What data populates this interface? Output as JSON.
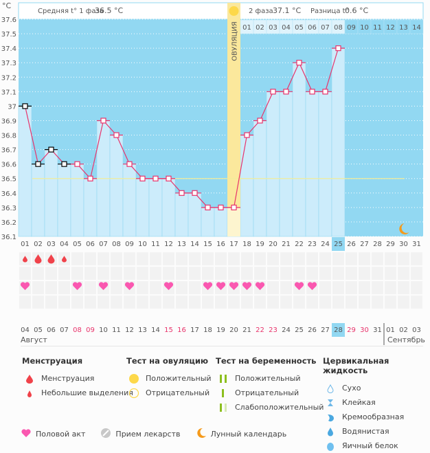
{
  "chart_data": {
    "type": "line",
    "title": "",
    "ylabel": "°C",
    "ylim": [
      36.1,
      37.6
    ],
    "yticks": [
      "37.6",
      "37.5",
      "37.4",
      "37.3",
      "37.2",
      "37.1",
      "37",
      "36.9",
      "36.8",
      "36.7",
      "36.6",
      "36.5",
      "36.4",
      "36.3",
      "36.2",
      "36.1"
    ],
    "cycle_days": [
      "01",
      "02",
      "03",
      "04",
      "05",
      "06",
      "07",
      "08",
      "09",
      "10",
      "11",
      "12",
      "13",
      "14",
      "15",
      "16",
      "17",
      "18",
      "19",
      "20",
      "21",
      "22",
      "23",
      "24",
      "25",
      "26",
      "27",
      "28",
      "29",
      "30",
      "31"
    ],
    "phase2_days": [
      "01",
      "02",
      "03",
      "04",
      "05",
      "06",
      "07",
      "08",
      "09",
      "10",
      "11",
      "12",
      "13",
      "14"
    ],
    "temperatures": [
      37.0,
      36.6,
      36.7,
      36.6,
      36.6,
      36.5,
      36.9,
      36.8,
      36.6,
      36.5,
      36.5,
      36.5,
      36.4,
      36.4,
      36.3,
      36.3,
      36.3,
      36.8,
      36.9,
      37.1,
      37.1,
      37.3,
      37.1,
      37.1,
      37.4,
      null,
      null,
      null,
      null,
      null,
      null
    ],
    "excluded_points": [
      1,
      2,
      3,
      4
    ],
    "coverline": 36.5,
    "ovulation_day": 17,
    "current_day": 25,
    "moon_day": 30,
    "ovulation_label": "ОВУЛЯЦИЯ",
    "summary": {
      "phase1_label": "Средняя t° 1 фаза",
      "phase1_value": "36.5 °C",
      "phase2_label": "2 фаза",
      "phase2_value": "37.1 °C",
      "diff_label": "Разница t°",
      "diff_value": "0.6 °C"
    },
    "menstruation": {
      "1": "small",
      "2": "large",
      "3": "large",
      "4": "small"
    },
    "intercourse_days": [
      1,
      5,
      7,
      9,
      12,
      15,
      16,
      17,
      18,
      19,
      22,
      23
    ],
    "calendar_dates": [
      "04",
      "05",
      "06",
      "07",
      "08",
      "09",
      "10",
      "11",
      "12",
      "13",
      "14",
      "15",
      "16",
      "17",
      "18",
      "19",
      "20",
      "21",
      "22",
      "23",
      "24",
      "25",
      "26",
      "27",
      "28",
      "29",
      "30",
      "31",
      "01",
      "02",
      "03"
    ],
    "weekend_dates": [
      "08",
      "09",
      "15",
      "16",
      "22",
      "23",
      "29",
      "30"
    ],
    "today_date": "28",
    "months": [
      "Август",
      "Сентябрь"
    ]
  },
  "colors": {
    "sky": "#92d8f2",
    "bar": "#ccecfb",
    "line": "#e8336b",
    "ovulation": "#fbe89c",
    "coverline": "#f2ed9a",
    "drop": "#f0424a",
    "heart": "#fa58b0",
    "moon": "#f59a1b"
  },
  "legend": {
    "menstruation": {
      "title": "Менструация",
      "items": [
        "Менструация",
        "Небольшие выделения"
      ]
    },
    "ovulation_test": {
      "title": "Тест на овуляцию",
      "items": [
        "Положительный",
        "Отрицательный"
      ]
    },
    "pregnancy_test": {
      "title": "Тест на беременность",
      "items": [
        "Положительный",
        "Отрицательный",
        "Слабоположительный"
      ]
    },
    "cervical": {
      "title": "Цервикальная жидкость",
      "items": [
        "Сухо",
        "Клейкая",
        "Кремообразная",
        "Водянистая",
        "Яичный белок"
      ]
    },
    "bottom": [
      "Половой акт",
      "Прием лекарств",
      "Лунный календарь"
    ]
  }
}
